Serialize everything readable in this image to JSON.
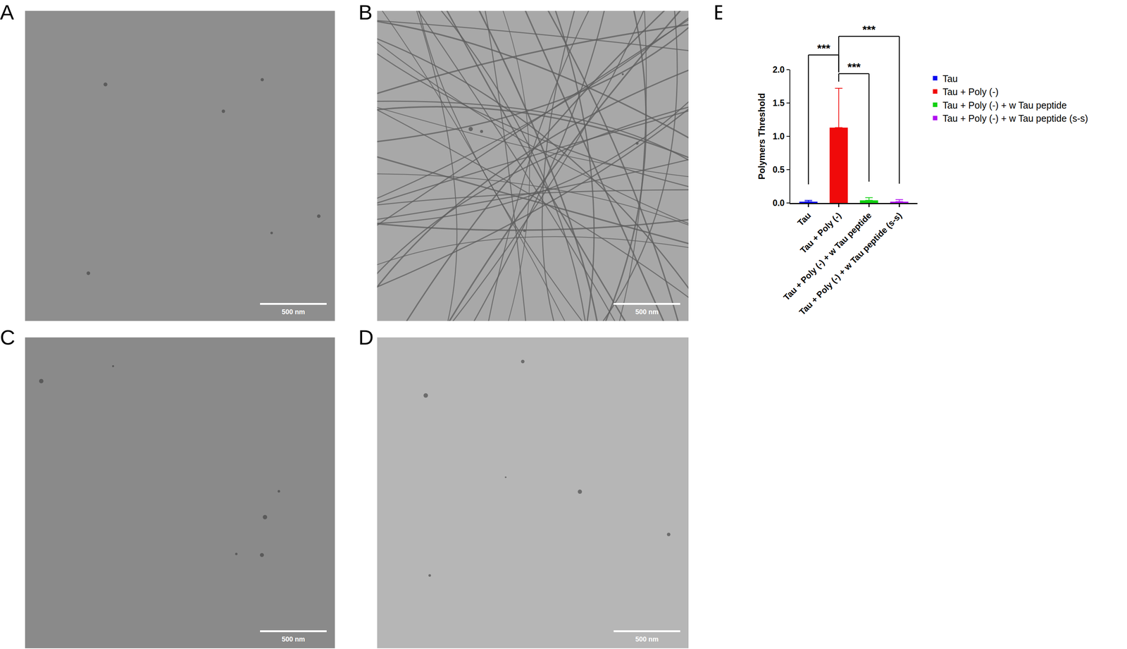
{
  "panels": [
    {
      "label": "A",
      "scale_bar": "500 nm",
      "fibrils": false
    },
    {
      "label": "B",
      "scale_bar": "500 nm",
      "fibrils": true
    },
    {
      "label": "C",
      "scale_bar": "500 nm",
      "fibrils": false
    },
    {
      "label": "D",
      "scale_bar": "500 nm",
      "fibrils": false
    }
  ],
  "chart_data": {
    "type": "bar",
    "label": "E",
    "ylabel": "Polymers Threshold",
    "categories": [
      "Tau",
      "Tau + Poly (-)",
      "Tau + Poly (-) + w Tau peptide",
      "Tau + Poly (-) + w Tau peptide (s-s)"
    ],
    "values": [
      0.02,
      1.13,
      0.04,
      0.02
    ],
    "error": [
      0.02,
      0.59,
      0.04,
      0.03
    ],
    "colors": [
      "#0a0af0",
      "#f00a0a",
      "#10d010",
      "#b010f0"
    ],
    "ylim": [
      0,
      2.0
    ],
    "yticks": [
      {
        "value": 0,
        "label": "0.0"
      },
      {
        "value": 0.5,
        "label": "0.5"
      },
      {
        "value": 1.0,
        "label": "1.0"
      },
      {
        "value": 1.5,
        "label": "1.5"
      },
      {
        "value": 2.0,
        "label": "2.0"
      }
    ],
    "legend": "right",
    "comparisons": [
      {
        "pair": [
          1,
          2
        ],
        "text": "***"
      },
      {
        "pair": [
          1,
          3
        ],
        "text": "***"
      },
      {
        "pair": [
          0,
          1
        ],
        "text": "***"
      }
    ]
  }
}
